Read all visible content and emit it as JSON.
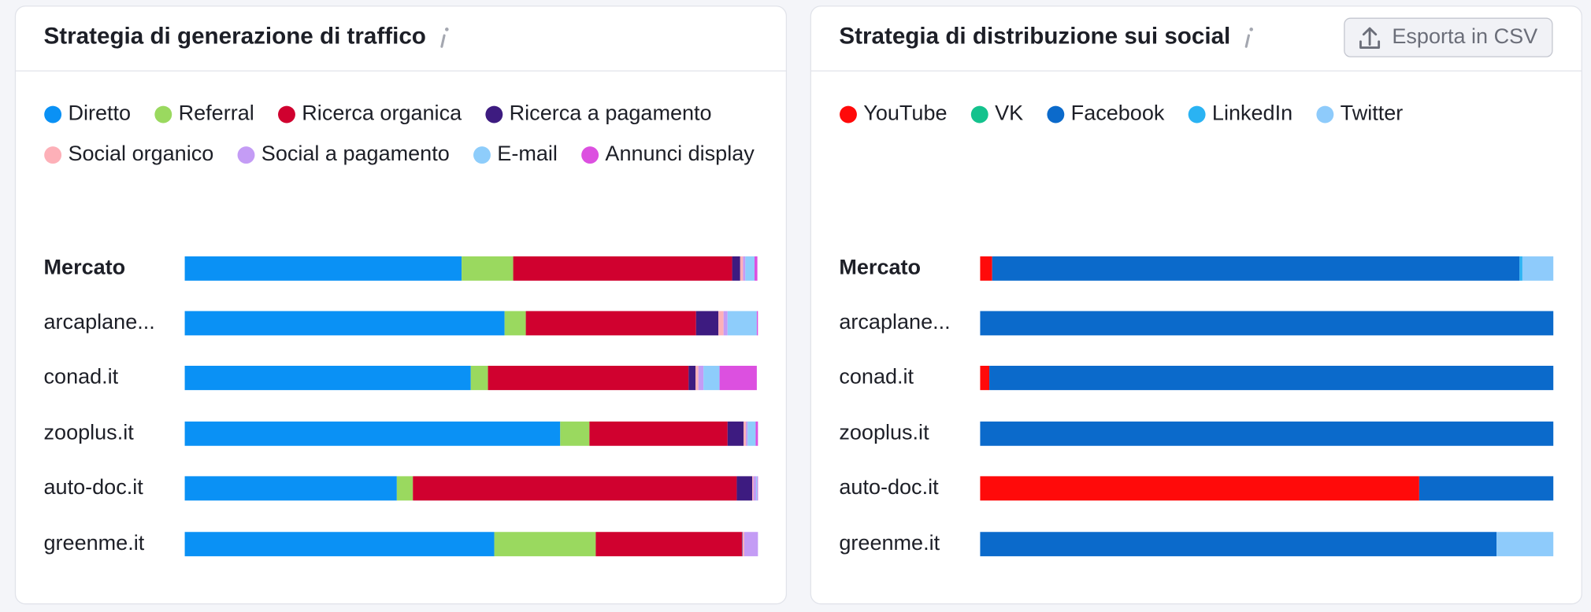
{
  "chart_data": [
    {
      "type": "stacked-bar-horizontal",
      "title": "Strategia di generazione di traffico",
      "categories": [
        "Mercato",
        "arcaplane...",
        "conad.it",
        "zooplus.it",
        "auto-doc.it",
        "greenme.it"
      ],
      "xlim": [
        0,
        100
      ],
      "series": [
        {
          "name": "Diretto",
          "color": "#0a91f5",
          "values": [
            48.3,
            55.8,
            49.9,
            65.5,
            37.0,
            54.0
          ]
        },
        {
          "name": "Referral",
          "color": "#9ad95f",
          "values": [
            9.0,
            3.7,
            3.0,
            5.1,
            2.8,
            17.7
          ]
        },
        {
          "name": "Ricerca organica",
          "color": "#d0012f",
          "values": [
            38.2,
            29.7,
            35.0,
            24.1,
            56.5,
            25.5
          ]
        },
        {
          "name": "Ricerca a pagamento",
          "color": "#3d1b80",
          "values": [
            1.4,
            3.9,
            1.2,
            2.8,
            2.7,
            0.1
          ]
        },
        {
          "name": "Social organico",
          "color": "#fdb0b8",
          "values": [
            0.5,
            0.9,
            0.5,
            0.4,
            0.2,
            0.3
          ]
        },
        {
          "name": "Social a pagamento",
          "color": "#c49cf5",
          "values": [
            0.4,
            0.7,
            0.9,
            0.3,
            0.5,
            2.4
          ]
        },
        {
          "name": "E-mail",
          "color": "#8ecdfb",
          "values": [
            1.6,
            5.1,
            2.8,
            1.4,
            0.2,
            0
          ]
        },
        {
          "name": "Annunci display",
          "color": "#dc50e0",
          "values": [
            0.5,
            0.2,
            6.5,
            0.4,
            0.1,
            0
          ]
        }
      ]
    },
    {
      "type": "stacked-bar-horizontal",
      "title": "Strategia di distribuzione sui social",
      "categories": [
        "Mercato",
        "arcaplane...",
        "conad.it",
        "zooplus.it",
        "auto-doc.it",
        "greenme.it"
      ],
      "xlim": [
        0,
        100
      ],
      "series": [
        {
          "name": "YouTube",
          "color": "#ff0a0a",
          "values": [
            2.1,
            0,
            1.6,
            0,
            76.6,
            0
          ]
        },
        {
          "name": "VK",
          "color": "#14c28d",
          "values": [
            0,
            0,
            0,
            0,
            0,
            0
          ]
        },
        {
          "name": "Facebook",
          "color": "#0b6acb",
          "values": [
            92.0,
            100,
            98.4,
            100,
            23.4,
            90.1
          ]
        },
        {
          "name": "LinkedIn",
          "color": "#2ab3f3",
          "values": [
            0.5,
            0,
            0,
            0,
            0,
            0
          ]
        },
        {
          "name": "Twitter",
          "color": "#8ecbfb",
          "values": [
            5.4,
            0,
            0,
            0,
            0,
            9.9
          ]
        }
      ]
    }
  ],
  "button": "Esporta in CSV"
}
